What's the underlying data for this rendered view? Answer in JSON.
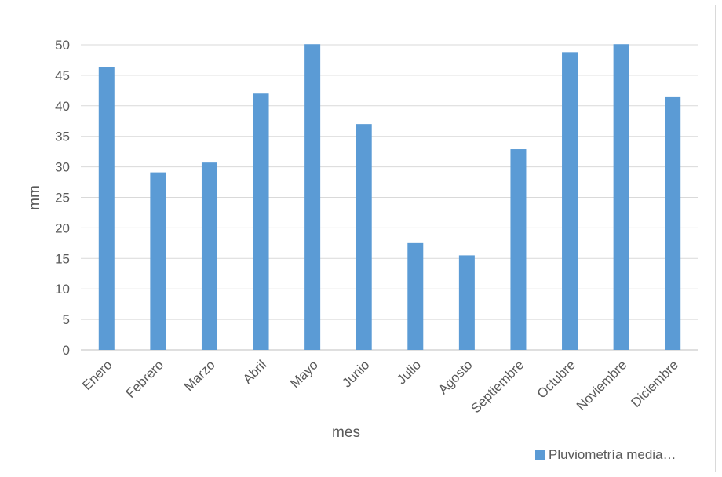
{
  "chart_data": {
    "type": "bar",
    "categories": [
      "Enero",
      "Febrero",
      "Marzo",
      "Abril",
      "Mayo",
      "Junio",
      "Julio",
      "Agosto",
      "Septiembre",
      "Octubre",
      "Noviembre",
      "Diciembre"
    ],
    "series": [
      {
        "name": "Pluviometría media…",
        "values": [
          46.4,
          29.1,
          30.7,
          42.0,
          50.1,
          37.0,
          17.5,
          15.5,
          32.9,
          48.8,
          50.1,
          41.4
        ],
        "color": "#5b9bd5"
      }
    ],
    "title": "",
    "xlabel": "mes",
    "ylabel": "mm",
    "ylim": [
      0,
      50
    ],
    "yticks": [
      0,
      5,
      10,
      15,
      20,
      25,
      30,
      35,
      40,
      45,
      50
    ],
    "grid": true,
    "legend_position": "bottom-right"
  }
}
